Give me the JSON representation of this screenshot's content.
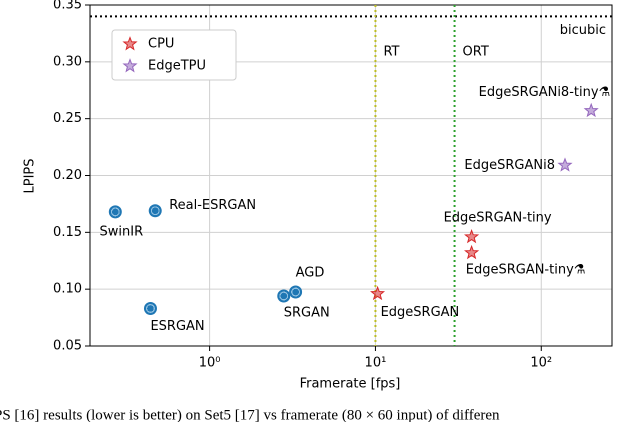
{
  "chart_data": {
    "type": "scatter",
    "xlabel": "Framerate [fps]",
    "ylabel": "LPIPS",
    "xscale": "log",
    "xlim": [
      0.19,
      267
    ],
    "ylim": [
      0.05,
      0.35
    ],
    "xticks": [
      {
        "value": 1,
        "label": "10⁰"
      },
      {
        "value": 10,
        "label": "10¹"
      },
      {
        "value": 100,
        "label": "10²"
      }
    ],
    "yticks": [
      0.05,
      {
        "value": 0.1,
        "label": "0.10"
      },
      0.15,
      {
        "value": 0.2,
        "label": "0.20"
      },
      0.25,
      {
        "value": 0.3,
        "label": "0.30"
      },
      0.35
    ],
    "grid": true,
    "legend": "upper left",
    "series": [
      {
        "color": "#1f77b4",
        "marker": "circle",
        "x": [
          0.27,
          0.47,
          0.44,
          2.8,
          3.3
        ],
        "values": [
          0.168,
          0.169,
          0.083,
          0.094,
          0.0975
        ],
        "labels": [
          "SwinIR",
          "Real-ESRGAN",
          "ESRGAN",
          "SRGAN",
          "AGD"
        ]
      },
      {
        "name": "CPU",
        "color": "#d62728",
        "marker": "star",
        "x": [
          10.3,
          38,
          38
        ],
        "values": [
          0.096,
          0.146,
          0.132
        ],
        "labels": [
          "EdgeSRGAN",
          "EdgeSRGAN-tiny",
          "EdgeSRGAN-tiny⚗"
        ]
      },
      {
        "name": "EdgeTPU",
        "color": "#9467bd",
        "marker": "star",
        "x": [
          139,
          200
        ],
        "values": [
          0.209,
          0.257
        ],
        "labels": [
          "EdgeSRGANi8",
          "EdgeSRGANi8-tiny⚗"
        ]
      }
    ],
    "hlines": [
      {
        "value": 0.34,
        "label": "bicubic",
        "color": "#000000"
      }
    ],
    "vlines": [
      {
        "value": 10,
        "label": "RT",
        "color": "#bcbd22"
      },
      {
        "value": 30,
        "label": "ORT",
        "color": "#2ca02c"
      }
    ],
    "caption": "PS [16] results (lower is better) on Set5 [17] vs framerate (80 × 60 input) of differen"
  }
}
